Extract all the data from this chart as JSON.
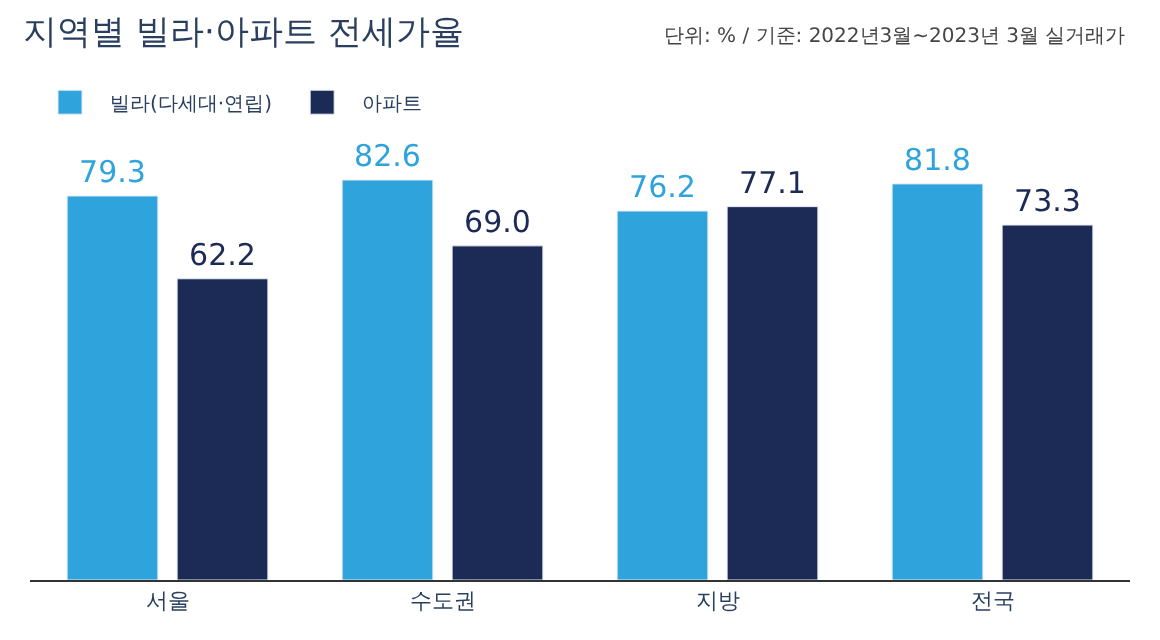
{
  "chart_data": {
    "type": "bar",
    "title": "지역별 빌라·아파트 전세가율",
    "annotations": [
      "단위: % / 기준: 2022년3월~2023년 3월 실거래가"
    ],
    "categories": [
      "서울",
      "수도권",
      "지방",
      "전국"
    ],
    "series": [
      {
        "name": "빌라(다세대·연립)",
        "color": "#2fa3dc",
        "values": [
          79.3,
          82.6,
          76.2,
          81.8
        ],
        "value_labels": [
          "79.3",
          "82.6",
          "76.2",
          "81.8"
        ]
      },
      {
        "name": "아파트",
        "color": "#1c2a56",
        "values": [
          62.2,
          69.0,
          77.1,
          73.3
        ],
        "value_labels": [
          "62.2",
          "69.0",
          "77.1",
          "73.3"
        ]
      }
    ],
    "legend": "top left"
  }
}
